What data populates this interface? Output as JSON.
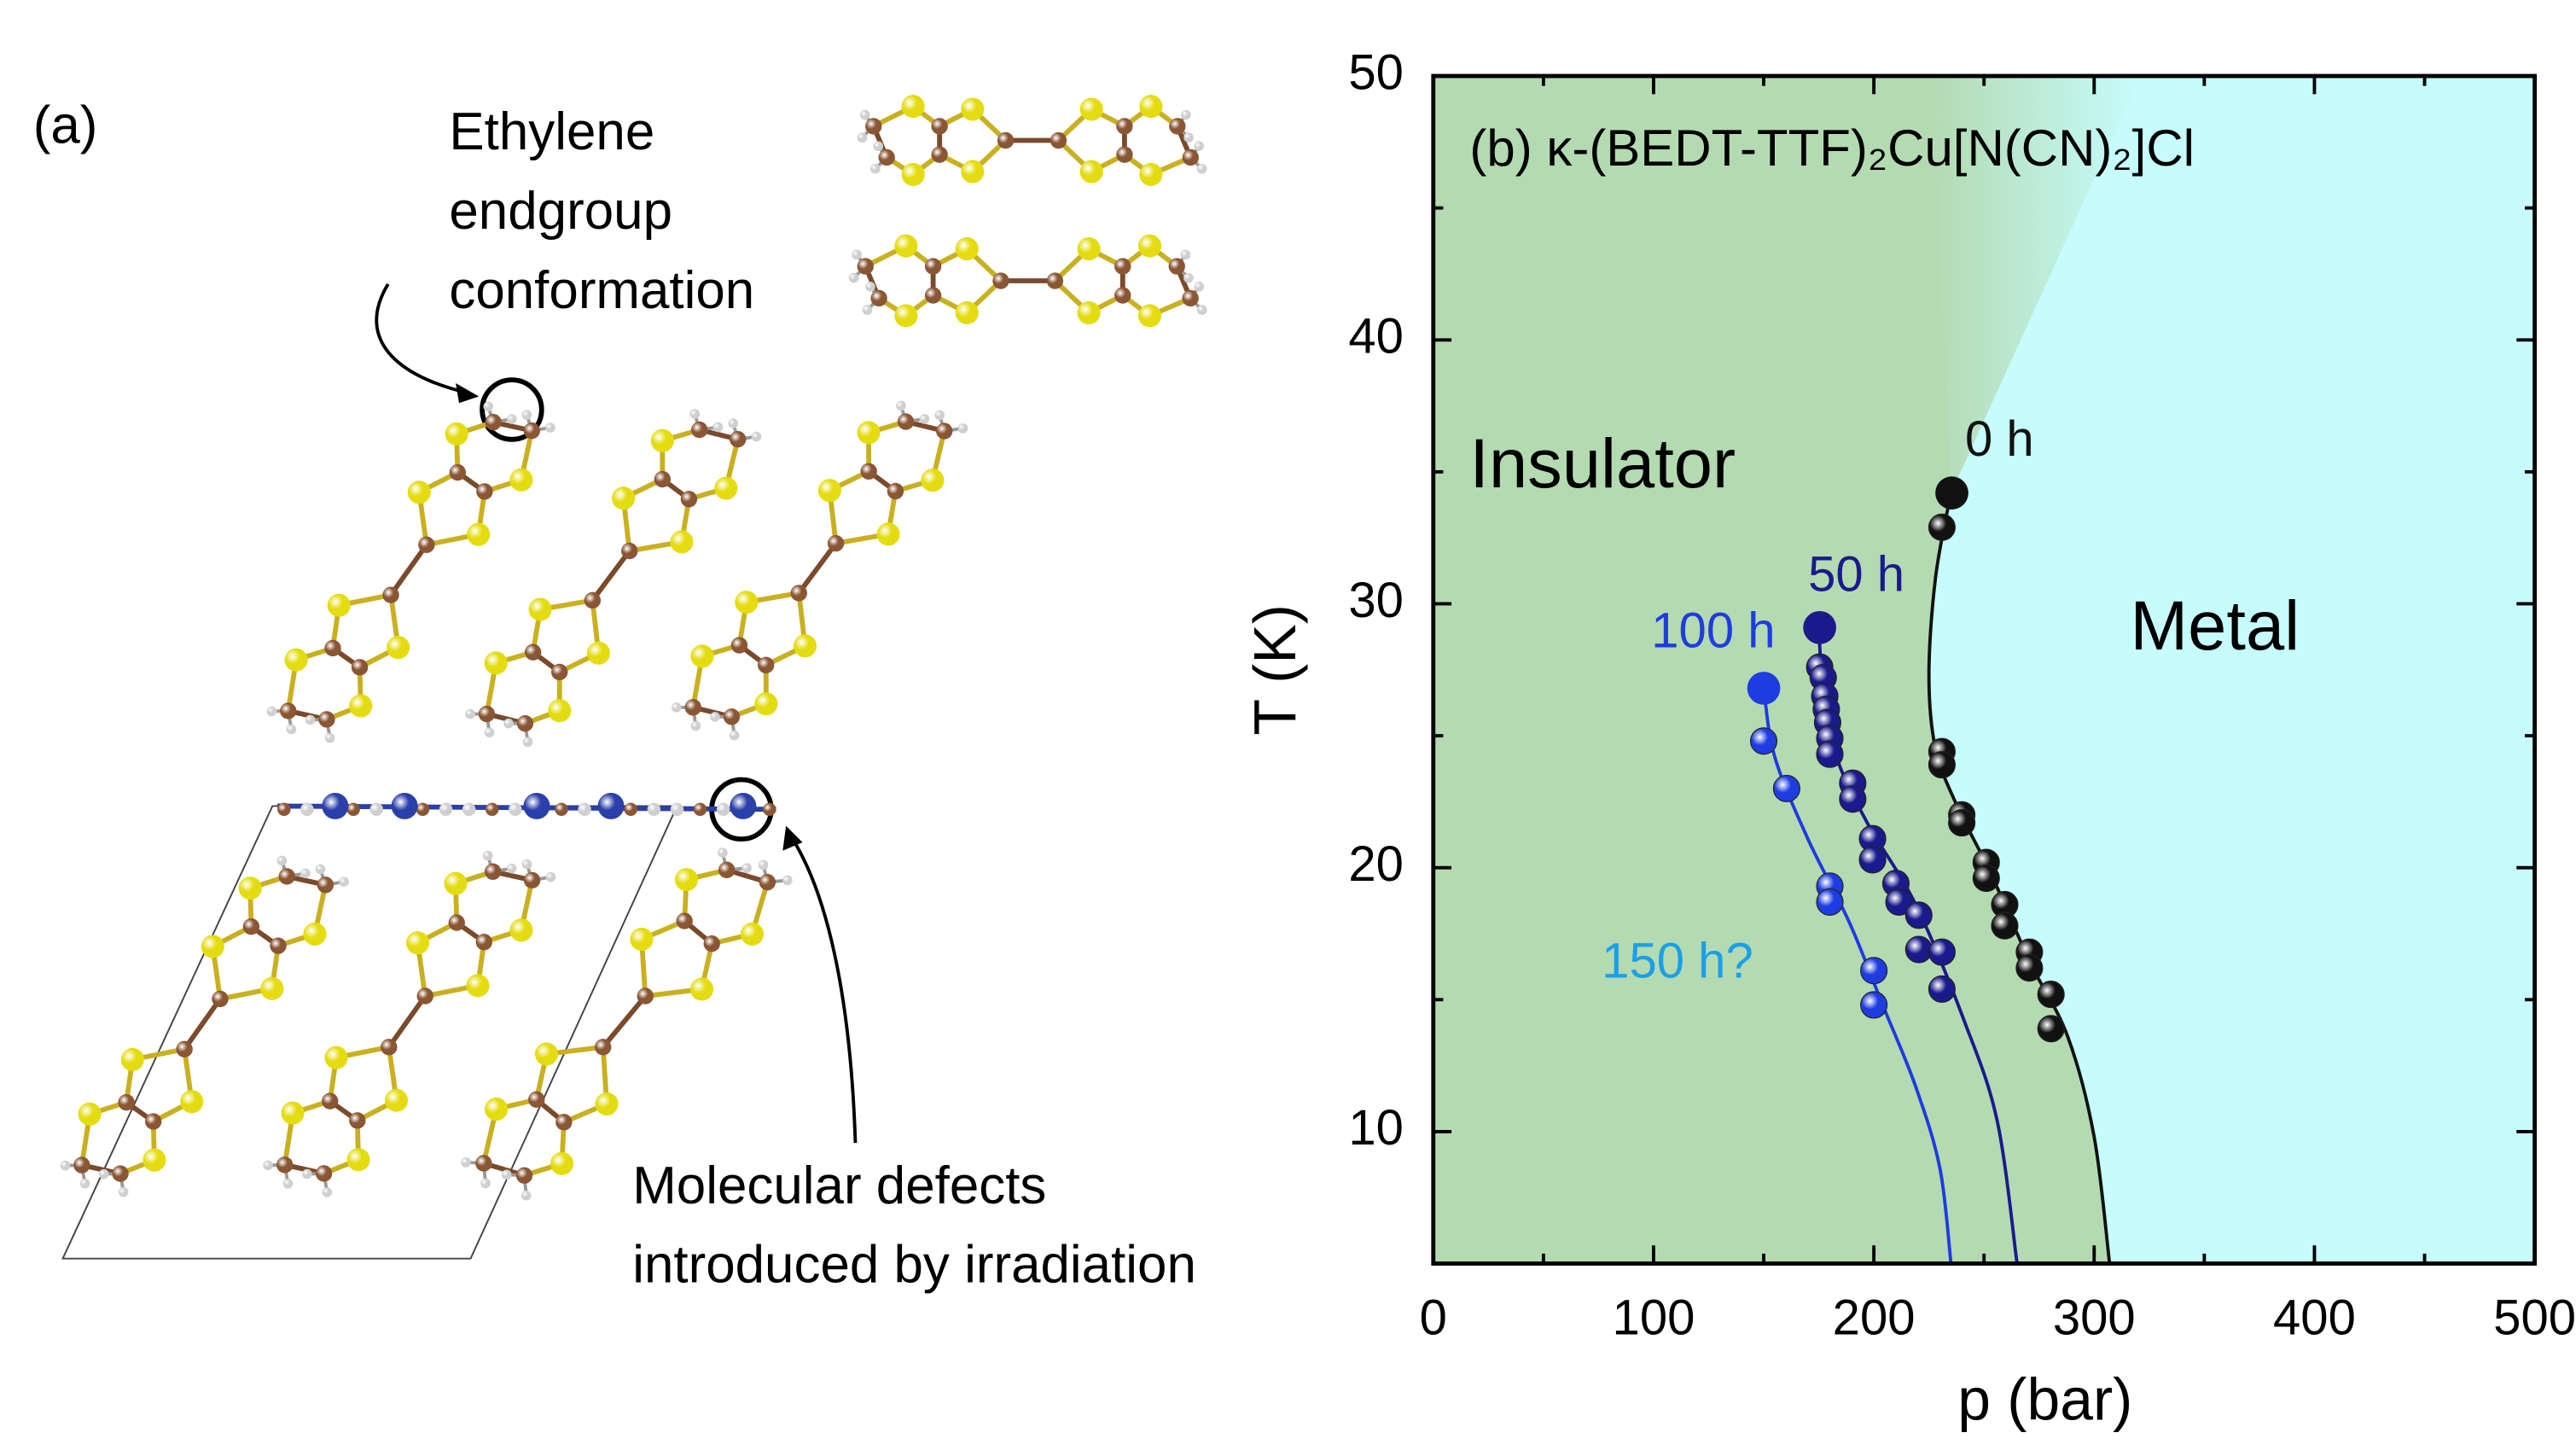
{
  "panel_a": {
    "label": "(a)",
    "top_annotation": [
      "Ethylene",
      "endgroup",
      "conformation"
    ],
    "bottom_annotation": [
      "Molecular defects",
      "introduced by irradiation"
    ]
  },
  "chart_data": {
    "type": "scatter",
    "title": "(b) κ-(BEDT-TTF)₂Cu[N(CN)₂]Cl",
    "xlabel": "p (bar)",
    "ylabel": "T (K)",
    "xlim": [
      0,
      500
    ],
    "ylim": [
      5,
      50
    ],
    "xticks": [
      0,
      100,
      200,
      300,
      400,
      500
    ],
    "yticks": [
      10,
      20,
      30,
      40,
      50
    ],
    "x_minor_ticks": [
      50,
      150,
      250,
      350,
      450
    ],
    "y_minor_ticks": [
      15,
      25,
      35,
      45
    ],
    "regions": [
      {
        "name": "Insulator",
        "color": "#b4dab2"
      },
      {
        "name": "Metal",
        "color": "#c6fcfc"
      }
    ],
    "series": [
      {
        "name": "0 h",
        "color": "#111111",
        "x": [
          235.4,
          230.9,
          230.9,
          230.9,
          239.9,
          239.9,
          251,
          251,
          259.4,
          259.4,
          270.6,
          270.6,
          280.4,
          280.4
        ],
        "values": [
          34.2,
          32.9,
          24.4,
          23.9,
          22.0,
          21.7,
          20.2,
          19.6,
          18.6,
          17.8,
          16.8,
          16.2,
          15.2,
          13.9
        ],
        "fit_x": [
          235,
          228,
          225,
          228,
          238,
          253,
          271,
          288,
          300,
          307
        ],
        "fit_values": [
          34.2,
          31.0,
          27.3,
          24.5,
          22.3,
          19.8,
          16.4,
          13.6,
          9.8,
          5
        ]
      },
      {
        "name": "50 h",
        "color": "#1a1a8c",
        "x": [
          175.4,
          175.4,
          177,
          177.7,
          178.4,
          179,
          180,
          180,
          190.4,
          190.4,
          199.4,
          199.4,
          210,
          211.4,
          220.4,
          220.4,
          230.9,
          230.9
        ],
        "values": [
          29.1,
          27.6,
          27.2,
          26.5,
          26.0,
          25.5,
          24.9,
          24.3,
          23.2,
          22.6,
          21.1,
          20.3,
          19.4,
          18.7,
          18.2,
          16.9,
          16.8,
          15.4
        ],
        "fit_x": [
          175,
          177,
          183,
          197,
          219,
          241,
          256,
          265
        ],
        "fit_values": [
          29.1,
          26.7,
          24.2,
          21.7,
          18.6,
          14.2,
          10.4,
          5
        ]
      },
      {
        "name": "100 h",
        "color": "#1e3ce0",
        "x": [
          150,
          150,
          160.4,
          180,
          180,
          200,
          200
        ],
        "values": [
          26.8,
          24.8,
          23.0,
          19.3,
          18.7,
          16.1,
          14.8
        ],
        "fit_x": [
          150,
          155,
          170,
          189,
          204,
          219,
          230,
          235
        ],
        "fit_values": [
          26.8,
          24.2,
          21.1,
          17.9,
          14.8,
          11.7,
          8.6,
          5
        ]
      }
    ],
    "annotation": {
      "text": "150 h?",
      "color": "#1aa0e8"
    }
  }
}
